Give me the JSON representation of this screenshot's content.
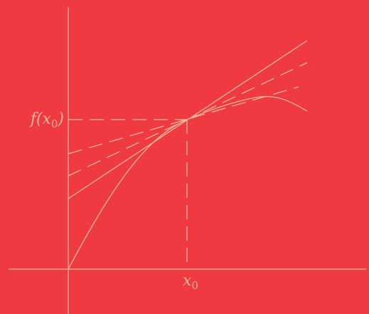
{
  "colors": {
    "background": "#ef3a42",
    "stroke": "#f6b69a"
  },
  "labels": {
    "y_value": {
      "prefix": "f(x",
      "subscript": "0",
      "suffix": ")"
    },
    "x_value": {
      "prefix": "x",
      "subscript": "0"
    }
  },
  "elements": {
    "curve": "concave-curve",
    "tangent": "solid-tangent-line",
    "secants": [
      "dashed-secant-line",
      "dashed-secant-line"
    ],
    "guides": [
      "dashed-horizontal-guide",
      "dashed-vertical-guide"
    ],
    "axes": [
      "x-axis",
      "y-axis"
    ]
  }
}
